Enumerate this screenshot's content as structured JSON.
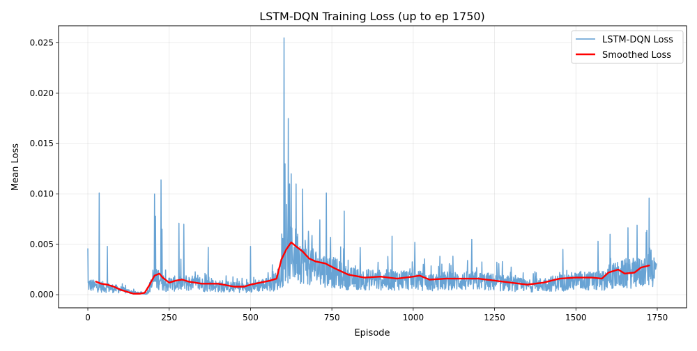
{
  "chart_data": {
    "type": "line",
    "title": "LSTM-DQN Training Loss (up to ep 1750)",
    "xlabel": "Episode",
    "ylabel": "Mean Loss",
    "xlim": [
      -90,
      1840
    ],
    "ylim": [
      -0.0013,
      0.0267
    ],
    "x_ticks": [
      0,
      250,
      500,
      750,
      1000,
      1250,
      1500,
      1750
    ],
    "x_tick_labels": [
      "0",
      "250",
      "500",
      "750",
      "1000",
      "1250",
      "1500",
      "1750"
    ],
    "y_ticks": [
      0.0,
      0.005,
      0.01,
      0.015,
      0.02,
      0.025
    ],
    "y_tick_labels": [
      "0.000",
      "0.005",
      "0.010",
      "0.015",
      "0.020",
      "0.025"
    ],
    "grid": true,
    "legend_position": "top-right",
    "series": [
      {
        "name": "LSTM-DQN Loss",
        "color": "#5b9bd0",
        "style": "thin-noisy",
        "anchors_x": [
          0,
          20,
          50,
          100,
          150,
          180,
          200,
          220,
          240,
          300,
          400,
          480,
          520,
          560,
          580,
          600,
          625,
          650,
          700,
          750,
          800,
          900,
          1000,
          1050,
          1100,
          1200,
          1300,
          1350,
          1400,
          1500,
          1550,
          1580,
          1600,
          1650,
          1700,
          1720,
          1750
        ],
        "anchors_base": [
          0.0012,
          0.001,
          0.0009,
          0.0006,
          0.0002,
          0.0001,
          0.0015,
          0.002,
          0.0012,
          0.0014,
          0.001,
          0.0008,
          0.0011,
          0.0012,
          0.0016,
          0.003,
          0.0048,
          0.0045,
          0.0032,
          0.0027,
          0.0019,
          0.0017,
          0.0018,
          0.0014,
          0.0016,
          0.0016,
          0.0013,
          0.001,
          0.0012,
          0.0016,
          0.0016,
          0.0015,
          0.0021,
          0.0024,
          0.0026,
          0.0029,
          0.0028
        ],
        "peaks": [
          {
            "x": 0,
            "y": 0.0046
          },
          {
            "x": 35,
            "y": 0.0101
          },
          {
            "x": 60,
            "y": 0.0048
          },
          {
            "x": 205,
            "y": 0.01
          },
          {
            "x": 208,
            "y": 0.0078
          },
          {
            "x": 225,
            "y": 0.0114
          },
          {
            "x": 228,
            "y": 0.0065
          },
          {
            "x": 280,
            "y": 0.0071
          },
          {
            "x": 295,
            "y": 0.007
          },
          {
            "x": 370,
            "y": 0.0047
          },
          {
            "x": 500,
            "y": 0.0048
          },
          {
            "x": 603,
            "y": 0.0255
          },
          {
            "x": 606,
            "y": 0.013
          },
          {
            "x": 616,
            "y": 0.0175
          },
          {
            "x": 620,
            "y": 0.011
          },
          {
            "x": 625,
            "y": 0.012
          },
          {
            "x": 640,
            "y": 0.011
          },
          {
            "x": 660,
            "y": 0.0105
          },
          {
            "x": 733,
            "y": 0.0101
          },
          {
            "x": 788,
            "y": 0.0083
          },
          {
            "x": 935,
            "y": 0.0058
          },
          {
            "x": 1005,
            "y": 0.0052
          },
          {
            "x": 1180,
            "y": 0.0055
          },
          {
            "x": 1460,
            "y": 0.0045
          },
          {
            "x": 1568,
            "y": 0.0053
          },
          {
            "x": 1605,
            "y": 0.006
          },
          {
            "x": 1688,
            "y": 0.0069
          },
          {
            "x": 1718,
            "y": 0.0064
          },
          {
            "x": 1725,
            "y": 0.0096
          }
        ]
      },
      {
        "name": "Smoothed Loss",
        "color": "#ff0000",
        "style": "thick",
        "x": [
          25,
          40,
          60,
          80,
          100,
          120,
          140,
          160,
          175,
          190,
          205,
          220,
          230,
          250,
          270,
          290,
          310,
          330,
          350,
          400,
          450,
          480,
          500,
          530,
          560,
          580,
          595,
          610,
          625,
          640,
          660,
          680,
          700,
          730,
          760,
          800,
          850,
          900,
          950,
          1000,
          1020,
          1050,
          1100,
          1150,
          1200,
          1250,
          1300,
          1350,
          1400,
          1450,
          1500,
          1550,
          1580,
          1600,
          1630,
          1650,
          1680,
          1700,
          1725
        ],
        "y": [
          0.0013,
          0.0011,
          0.001,
          0.0008,
          0.0005,
          0.0003,
          0.0001,
          0.0001,
          0.0002,
          0.001,
          0.0019,
          0.0021,
          0.0017,
          0.0012,
          0.0014,
          0.0015,
          0.0013,
          0.0012,
          0.0011,
          0.0011,
          0.0008,
          0.0008,
          0.001,
          0.0012,
          0.0014,
          0.0016,
          0.0035,
          0.0045,
          0.0052,
          0.0048,
          0.0043,
          0.0036,
          0.0033,
          0.0031,
          0.0026,
          0.002,
          0.0017,
          0.0018,
          0.0016,
          0.0018,
          0.0019,
          0.0015,
          0.0016,
          0.0016,
          0.0016,
          0.0014,
          0.0012,
          0.001,
          0.0012,
          0.0016,
          0.0017,
          0.0017,
          0.0016,
          0.0022,
          0.0025,
          0.0021,
          0.0022,
          0.0027,
          0.0029
        ]
      }
    ]
  }
}
